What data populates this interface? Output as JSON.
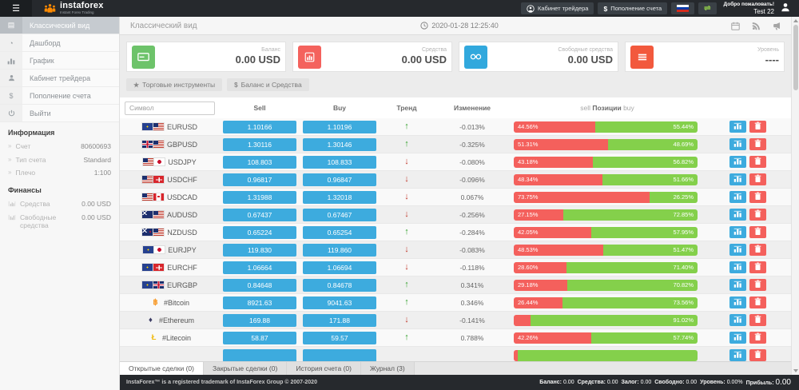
{
  "topbar": {
    "brand": "instaforex",
    "tagline": "Instant Forex Trading",
    "trader_cabinet": "Кабинет трейдера",
    "deposit": "Пополнение счета",
    "welcome": "Добро пожаловать!",
    "username": "Test 22"
  },
  "sidebar": {
    "items": [
      {
        "label": "Классический вид",
        "icon": "classic-view-icon",
        "active": true
      },
      {
        "label": "Дашборд",
        "icon": "dashboard-icon",
        "active": false
      },
      {
        "label": "График",
        "icon": "chart-icon",
        "active": false
      },
      {
        "label": "Кабинет трейдера",
        "icon": "user-icon",
        "active": false
      },
      {
        "label": "Пополнение счета",
        "icon": "dollar-icon",
        "active": false
      },
      {
        "label": "Выйти",
        "icon": "power-icon",
        "active": false
      }
    ],
    "info_header": "Информация",
    "info_rows": [
      {
        "label": "Счет",
        "value": "80600693"
      },
      {
        "label": "Тип счета",
        "value": "Standard"
      },
      {
        "label": "Плечо",
        "value": "1:100"
      }
    ],
    "finance_header": "Финансы",
    "finance_rows": [
      {
        "label": "Средства",
        "value": "0.00 USD",
        "icon": "equity-icon"
      },
      {
        "label": "Свободные средства",
        "value": "0.00 USD",
        "icon": "free-margin-icon"
      }
    ]
  },
  "main": {
    "page_title": "Классический вид",
    "timestamp": "2020-01-28 12:25:40",
    "cards": [
      {
        "label": "Баланс",
        "value": "0.00 USD",
        "color": "#6dc36a",
        "icon": "credit-card-icon"
      },
      {
        "label": "Средства",
        "value": "0.00 USD",
        "color": "#f4625d",
        "icon": "bar-chart-icon"
      },
      {
        "label": "Свободные средства",
        "value": "0.00 USD",
        "color": "#31a8dd",
        "icon": "binoculars-icon"
      },
      {
        "label": "Уровень",
        "value": "----",
        "color": "#f2593d",
        "icon": "list-icon"
      }
    ],
    "toolbar": [
      {
        "label": "Торговые инструменты",
        "icon": "star-icon"
      },
      {
        "label": "Баланс и Средства",
        "icon": "dollar-icon"
      }
    ],
    "table": {
      "search_placeholder": "Символ",
      "headers": {
        "sell": "Sell",
        "buy": "Buy",
        "trend": "Тренд",
        "change": "Изменение"
      },
      "positions_header": {
        "left": "sell",
        "mid": "Позиции",
        "right": "buy"
      },
      "rows": [
        {
          "symbol": "EURUSD",
          "flags": [
            "eu",
            "us"
          ],
          "sell": "1.10166",
          "buy": "1.10196",
          "trend": "up",
          "change": "-0.013%",
          "positions": {
            "sell_pct": 44.56,
            "buy_pct": 55.44,
            "sell_label": "44.56%",
            "buy_label": "55.44%"
          }
        },
        {
          "symbol": "GBPUSD",
          "flags": [
            "gb",
            "us"
          ],
          "sell": "1.30116",
          "buy": "1.30146",
          "trend": "up",
          "change": "-0.325%",
          "positions": {
            "sell_pct": 51.31,
            "buy_pct": 48.69,
            "sell_label": "51.31%",
            "buy_label": "48.69%"
          }
        },
        {
          "symbol": "USDJPY",
          "flags": [
            "us",
            "jp"
          ],
          "sell": "108.803",
          "buy": "108.833",
          "trend": "down",
          "change": "-0.080%",
          "positions": {
            "sell_pct": 43.18,
            "buy_pct": 56.82,
            "sell_label": "43.18%",
            "buy_label": "56.82%"
          }
        },
        {
          "symbol": "USDCHF",
          "flags": [
            "us",
            "ch"
          ],
          "sell": "0.96817",
          "buy": "0.96847",
          "trend": "down",
          "change": "-0.096%",
          "positions": {
            "sell_pct": 48.34,
            "buy_pct": 51.66,
            "sell_label": "48.34%",
            "buy_label": "51.66%"
          }
        },
        {
          "symbol": "USDCAD",
          "flags": [
            "us",
            "ca"
          ],
          "sell": "1.31988",
          "buy": "1.32018",
          "trend": "down",
          "change": "0.067%",
          "positions": {
            "sell_pct": 73.75,
            "buy_pct": 26.25,
            "sell_label": "73.75%",
            "buy_label": "26.25%"
          }
        },
        {
          "symbol": "AUDUSD",
          "flags": [
            "au",
            "us"
          ],
          "sell": "0.67437",
          "buy": "0.67467",
          "trend": "down",
          "change": "-0.256%",
          "positions": {
            "sell_pct": 27.15,
            "buy_pct": 72.85,
            "sell_label": "27.15%",
            "buy_label": "72.85%"
          }
        },
        {
          "symbol": "NZDUSD",
          "flags": [
            "nz",
            "us"
          ],
          "sell": "0.65224",
          "buy": "0.65254",
          "trend": "up",
          "change": "-0.284%",
          "positions": {
            "sell_pct": 42.05,
            "buy_pct": 57.95,
            "sell_label": "42.05%",
            "buy_label": "57.95%"
          }
        },
        {
          "symbol": "EURJPY",
          "flags": [
            "eu",
            "jp"
          ],
          "sell": "119.830",
          "buy": "119.860",
          "trend": "down",
          "change": "-0.083%",
          "positions": {
            "sell_pct": 48.53,
            "buy_pct": 51.47,
            "sell_label": "48.53%",
            "buy_label": "51.47%"
          }
        },
        {
          "symbol": "EURCHF",
          "flags": [
            "eu",
            "ch"
          ],
          "sell": "1.06664",
          "buy": "1.06694",
          "trend": "down",
          "change": "-0.118%",
          "positions": {
            "sell_pct": 28.6,
            "buy_pct": 71.4,
            "sell_label": "28.60%",
            "buy_label": "71.40%"
          }
        },
        {
          "symbol": "EURGBP",
          "flags": [
            "eu",
            "gb"
          ],
          "sell": "0.84648",
          "buy": "0.84678",
          "trend": "up",
          "change": "0.341%",
          "positions": {
            "sell_pct": 29.18,
            "buy_pct": 70.82,
            "sell_label": "29.18%",
            "buy_label": "70.82%"
          }
        },
        {
          "symbol": "#Bitcoin",
          "crypto": {
            "glyph": "฿",
            "color": "#f7931a",
            "name": "bitcoin-icon"
          },
          "sell": "8921.63",
          "buy": "9041.63",
          "trend": "up",
          "change": "0.346%",
          "positions": {
            "sell_pct": 26.44,
            "buy_pct": 73.56,
            "sell_label": "26.44%",
            "buy_label": "73.56%"
          }
        },
        {
          "symbol": "#Ethereum",
          "crypto": {
            "glyph": "♦",
            "color": "#3c3c64",
            "name": "ethereum-icon"
          },
          "sell": "169.88",
          "buy": "171.88",
          "trend": "down",
          "change": "-0.141%",
          "positions": {
            "sell_pct": 8.98,
            "buy_pct": 91.02,
            "sell_label": "",
            "buy_label": "91.02%"
          }
        },
        {
          "symbol": "#Litecoin",
          "crypto": {
            "glyph": "Ł",
            "color": "#f0b90b",
            "name": "litecoin-icon"
          },
          "sell": "58.87",
          "buy": "59.57",
          "trend": "up",
          "change": "0.788%",
          "positions": {
            "sell_pct": 42.26,
            "buy_pct": 57.74,
            "sell_label": "42.26%",
            "buy_label": "57.74%"
          }
        },
        {
          "symbol": "",
          "partial": true,
          "sell": "",
          "buy": "",
          "trend": "",
          "change": "",
          "positions": {
            "sell_pct": 2,
            "buy_pct": 98,
            "sell_label": "",
            "buy_label": ""
          }
        }
      ]
    },
    "tabs": [
      {
        "label": "Открытые сделки (0)",
        "active": true
      },
      {
        "label": "Закрытые сделки (0)",
        "active": false
      },
      {
        "label": "История счета (0)",
        "active": false
      },
      {
        "label": "Журнал (3)",
        "active": false
      }
    ]
  },
  "footer": {
    "copyright": "InstaForex™ is a registered trademark of InstaForex Group © 2007-2020",
    "stats": [
      {
        "label": "Баланс:",
        "value": "0.00"
      },
      {
        "label": "Средства:",
        "value": "0.00"
      },
      {
        "label": "Залог:",
        "value": "0.00"
      },
      {
        "label": "Свободно:",
        "value": "0.00"
      },
      {
        "label": "Уровень:",
        "value": "0.00%"
      },
      {
        "label": "Прибыль:",
        "value": "0.00",
        "big": true
      }
    ]
  },
  "colors": {
    "price_button": "#3dabde",
    "bar_sell_red": "#f4605c",
    "bar_buy_green": "#84d04b",
    "trend_up": "#33a02c",
    "trend_down": "#c0392b",
    "action_chart": "#3dabde",
    "action_trash": "#f4605c"
  }
}
